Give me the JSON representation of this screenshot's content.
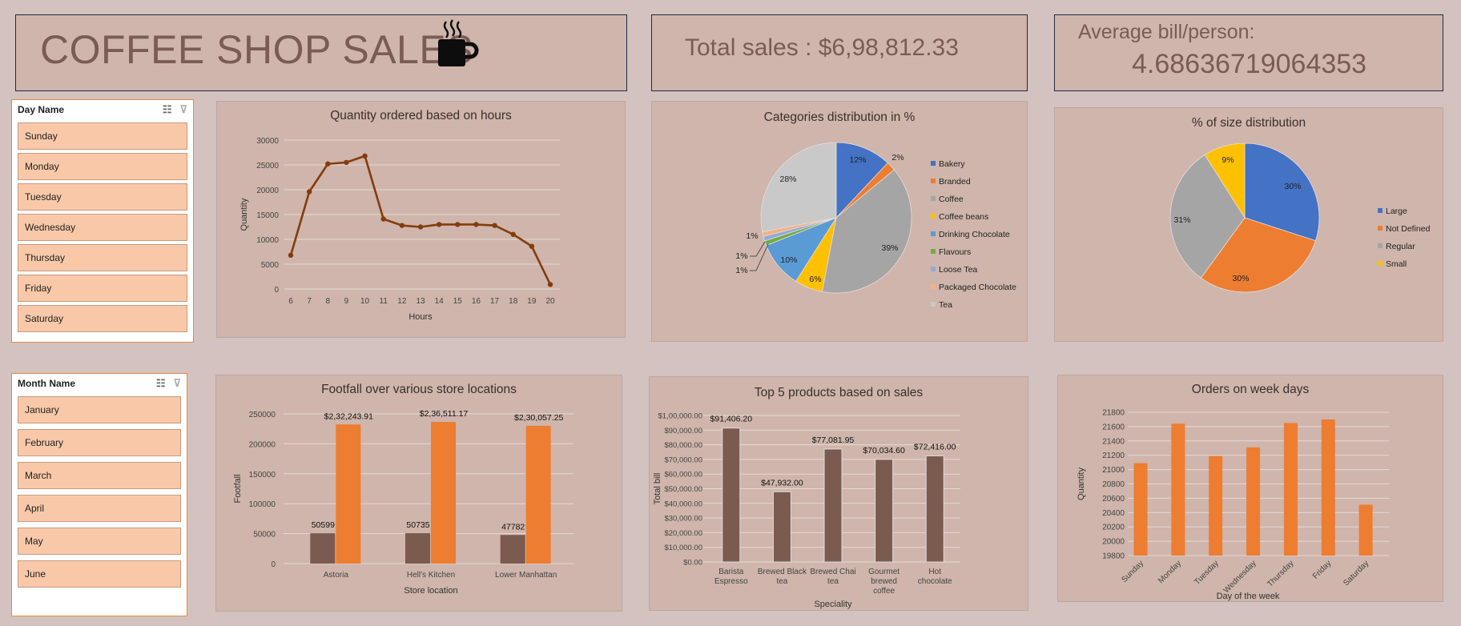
{
  "header": {
    "title": "COFFEE SHOP SALES",
    "total_sales": "Total sales : $6,98,812.33",
    "avg_label": "Average bill/person:",
    "avg_value": "4.68636719064353"
  },
  "slicers": {
    "day": {
      "title": "Day Name",
      "items": [
        "Sunday",
        "Monday",
        "Tuesday",
        "Wednesday",
        "Thursday",
        "Friday",
        "Saturday"
      ]
    },
    "month": {
      "title": "Month Name",
      "items": [
        "January",
        "February",
        "March",
        "April",
        "May",
        "June"
      ]
    }
  },
  "colors": {
    "accent": "#ed7d31",
    "brown": "#7b5a4f",
    "line": "#843c0c"
  },
  "chart_data": [
    {
      "id": "hours",
      "type": "line",
      "title": "Quantity ordered based on hours",
      "xlabel": "Hours",
      "ylabel": "Quantity",
      "x": [
        6,
        7,
        8,
        9,
        10,
        11,
        12,
        13,
        14,
        15,
        16,
        17,
        18,
        19,
        20
      ],
      "values": [
        6800,
        19600,
        25200,
        25500,
        26800,
        14100,
        12800,
        12500,
        13000,
        13000,
        13000,
        12800,
        11000,
        8600,
        900
      ],
      "ylim": [
        0,
        30000
      ],
      "yticks": [
        0,
        5000,
        10000,
        15000,
        20000,
        25000,
        30000
      ],
      "grid": true
    },
    {
      "id": "categories",
      "type": "pie",
      "title": "Categories distribution in %",
      "labels": [
        "Bakery",
        "Branded",
        "Coffee",
        "Coffee beans",
        "Drinking Chocolate",
        "Flavours",
        "Loose Tea",
        "Packaged Chocolate",
        "Tea"
      ],
      "values": [
        12,
        2,
        39,
        6,
        10,
        1,
        1,
        1,
        28
      ],
      "data_labels": [
        "12%",
        "2%",
        "39%",
        "6%",
        "10%",
        "1%",
        "1%",
        "1%",
        "28%"
      ],
      "colors": [
        "#4472c4",
        "#ed7d31",
        "#a5a5a5",
        "#ffc000",
        "#5b9bd5",
        "#70ad47",
        "#8faadc",
        "#f4b183",
        "#c9c9c9"
      ],
      "legend": "right"
    },
    {
      "id": "sizes",
      "type": "pie",
      "title": "% of size distribution",
      "labels": [
        "Large",
        "Not Defined",
        "Regular",
        "Small"
      ],
      "values": [
        30,
        30,
        31,
        9
      ],
      "data_labels": [
        "30%",
        "30%",
        "31%",
        "9%"
      ],
      "colors": [
        "#4472c4",
        "#ed7d31",
        "#a5a5a5",
        "#ffc000"
      ],
      "legend": "right"
    },
    {
      "id": "footfall",
      "type": "bar",
      "title": "Footfall over various store locations",
      "xlabel": "Store location",
      "ylabel": "Footfall",
      "categories": [
        "Astoria",
        "Hell's Kitchen",
        "Lower Manhattan"
      ],
      "series": [
        {
          "values": [
            50599,
            50735,
            47782
          ],
          "labels": [
            "50599",
            "50735",
            "47782"
          ]
        },
        {
          "values": [
            232243.91,
            236511.17,
            230057.25
          ],
          "labels": [
            "$2,32,243.91",
            "$2,36,511.17",
            "$2,30,057.25"
          ]
        }
      ],
      "ylim": [
        0,
        250000
      ],
      "yticks": [
        0,
        50000,
        100000,
        150000,
        200000,
        250000
      ],
      "grid": true
    },
    {
      "id": "top5",
      "type": "bar",
      "title": "Top 5 products based on sales",
      "xlabel": "Speciality",
      "ylabel": "Total bill",
      "categories": [
        [
          "Barista",
          "Espresso"
        ],
        [
          "Brewed Black",
          "tea"
        ],
        [
          "Brewed Chai",
          "tea"
        ],
        [
          "Gourmet",
          "brewed",
          "coffee"
        ],
        [
          "Hot",
          "chocolate"
        ]
      ],
      "values": [
        91406.2,
        47932.0,
        77081.95,
        70034.6,
        72416.0
      ],
      "data_labels": [
        "$91,406.20",
        "$47,932.00",
        "$77,081.95",
        "$70,034.60",
        "$72,416.00"
      ],
      "ylim": [
        0,
        100000
      ],
      "yticks": [
        "$0.00",
        "$10,000.00",
        "$20,000.00",
        "$30,000.00",
        "$40,000.00",
        "$50,000.00",
        "$60,000.00",
        "$70,000.00",
        "$80,000.00",
        "$90,000.00",
        "$1,00,000.00"
      ],
      "grid": true
    },
    {
      "id": "weekdays",
      "type": "bar",
      "title": "Orders on week days",
      "xlabel": "Day of the week",
      "ylabel": "Quantity",
      "categories": [
        "Sunday",
        "Monday",
        "Tuesday",
        "Wednesday",
        "Thursday",
        "Friday",
        "Saturday"
      ],
      "values": [
        21090,
        21640,
        21190,
        21310,
        21650,
        21700,
        20510
      ],
      "ylim": [
        19800,
        21800
      ],
      "yticks": [
        19800,
        20000,
        20200,
        20400,
        20600,
        20800,
        21000,
        21200,
        21400,
        21600,
        21800
      ],
      "grid": true
    }
  ]
}
